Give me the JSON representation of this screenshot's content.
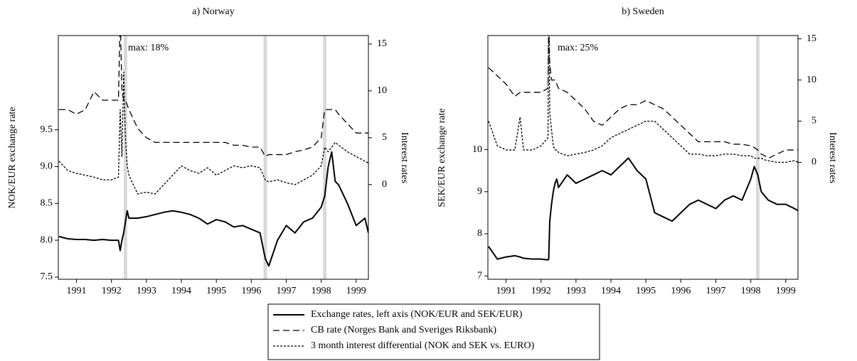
{
  "chart_data": [
    {
      "type": "line",
      "title": "a) Norway",
      "ylabel": "NOK/EUR exchange rate",
      "y2label": "Interest rates",
      "annotation": "max: 18%",
      "x": [
        1991.0,
        1991.25,
        1991.5,
        1991.75,
        1992.0,
        1992.25,
        1992.5,
        1992.7,
        1992.75,
        1992.8,
        1992.85,
        1992.9,
        1992.95,
        1993.0,
        1993.25,
        1993.5,
        1993.75,
        1994.0,
        1994.25,
        1994.5,
        1994.75,
        1995.0,
        1995.25,
        1995.5,
        1995.75,
        1996.0,
        1996.25,
        1996.5,
        1996.75,
        1996.9,
        1997.0,
        1997.25,
        1997.5,
        1997.75,
        1998.0,
        1998.25,
        1998.5,
        1998.6,
        1998.7,
        1998.8,
        1998.9,
        1999.0,
        1999.25,
        1999.5,
        1999.75,
        1999.85
      ],
      "series": [
        {
          "name": "Exchange rates, left axis (NOK/EUR and SEK/EUR)",
          "color": "#000000",
          "dash": "none",
          "width": 2,
          "values": [
            8.05,
            8.02,
            8.01,
            8.01,
            8.0,
            8.01,
            8.0,
            8.0,
            7.86,
            8.0,
            8.1,
            8.25,
            8.4,
            8.3,
            8.3,
            8.32,
            8.35,
            8.38,
            8.4,
            8.38,
            8.35,
            8.3,
            8.22,
            8.28,
            8.25,
            8.18,
            8.2,
            8.15,
            8.1,
            7.75,
            7.65,
            8.0,
            8.2,
            8.1,
            8.25,
            8.3,
            8.45,
            8.6,
            9.0,
            9.2,
            8.8,
            8.75,
            8.5,
            8.2,
            8.3,
            8.1
          ]
        },
        {
          "name": "CB rate (Norges Bank and Sveriges Riksbank)",
          "color": "#000000",
          "dash": "9,5",
          "width": 1.3,
          "axis": "y2",
          "values": [
            8,
            8,
            7.5,
            8,
            9.9,
            9,
            9,
            9,
            18,
            10,
            9,
            9,
            8.5,
            8,
            6,
            5,
            4.5,
            4.5,
            4.5,
            4.5,
            4.5,
            4.5,
            4.5,
            4.5,
            4.5,
            4.2,
            4.2,
            4,
            4,
            3,
            3.2,
            3.2,
            3.2,
            3.5,
            3.7,
            4,
            5,
            8,
            8,
            8,
            8,
            7.5,
            6.5,
            5.5,
            5.5,
            5.5
          ]
        },
        {
          "name": "3 month interest differential (NOK and SEK vs. EURO)",
          "color": "#000000",
          "dash": "3,2",
          "width": 1.3,
          "axis": "y2",
          "values": [
            2.5,
            1.5,
            1.2,
            1.0,
            0.8,
            0.5,
            0.5,
            0.8,
            8,
            3,
            12,
            5,
            2,
            1.0,
            -1,
            -0.8,
            -1,
            0,
            1,
            2,
            1.5,
            1.2,
            1.8,
            1.0,
            1.5,
            2,
            1.8,
            2,
            1.8,
            0.5,
            0.3,
            0.5,
            0.2,
            0,
            0.5,
            1,
            2,
            4,
            3.5,
            4,
            4.5,
            4.2,
            3.5,
            3,
            2.5,
            2.3
          ]
        }
      ],
      "shaded": [
        [
          1992.85,
          1992.95
        ],
        [
          1996.85,
          1996.95
        ],
        [
          1998.55,
          1998.65
        ]
      ],
      "xlim": [
        1990.98,
        1999.85
      ],
      "xticks": [
        {
          "value": 1991.5,
          "label": "1991"
        },
        {
          "value": 1992.5,
          "label": "1992"
        },
        {
          "value": 1993.5,
          "label": "1993"
        },
        {
          "value": 1994.5,
          "label": "1994"
        },
        {
          "value": 1995.5,
          "label": "1995"
        },
        {
          "value": 1996.5,
          "label": "1996"
        },
        {
          "value": 1997.5,
          "label": "1997"
        },
        {
          "value": 1998.5,
          "label": "1998"
        },
        {
          "value": 1999.5,
          "label": "1999"
        }
      ],
      "ylim": [
        7.47,
        10.78
      ],
      "yticks": [
        7.5,
        {
          "value": 8,
          "label": "8.0"
        },
        8.5,
        {
          "value": 9,
          "label": "9.0"
        },
        9.5
      ],
      "y2lim": [
        -10.1,
        15.9
      ],
      "y2ticks": [
        0,
        5,
        10,
        15
      ]
    },
    {
      "type": "line",
      "title": "b) Sweden",
      "ylabel": "SEK/EUR exchange rate",
      "y2label": "Interest rates",
      "annotation": "max: 25%",
      "x": [
        1991.0,
        1991.25,
        1991.5,
        1991.75,
        1991.9,
        1992.0,
        1992.25,
        1992.5,
        1992.7,
        1992.72,
        1992.75,
        1992.8,
        1992.85,
        1992.9,
        1992.95,
        1993.0,
        1993.25,
        1993.5,
        1993.75,
        1994.0,
        1994.25,
        1994.5,
        1994.75,
        1995.0,
        1995.25,
        1995.5,
        1995.75,
        1996.0,
        1996.25,
        1996.5,
        1996.75,
        1997.0,
        1997.25,
        1997.5,
        1997.75,
        1998.0,
        1998.25,
        1998.5,
        1998.6,
        1998.7,
        1998.8,
        1998.9,
        1999.0,
        1999.25,
        1999.5,
        1999.75,
        1999.85
      ],
      "series": [
        {
          "color": "#000000",
          "dash": "none",
          "width": 2,
          "values": [
            7.7,
            7.4,
            7.45,
            7.48,
            7.45,
            7.42,
            7.4,
            7.4,
            7.38,
            7.4,
            8.3,
            8.7,
            9.0,
            9.2,
            9.3,
            9.1,
            9.4,
            9.2,
            9.3,
            9.4,
            9.5,
            9.4,
            9.6,
            9.8,
            9.5,
            9.3,
            8.5,
            8.4,
            8.3,
            8.5,
            8.7,
            8.8,
            8.7,
            8.6,
            8.8,
            8.9,
            8.8,
            9.3,
            9.6,
            9.4,
            9.0,
            8.9,
            8.8,
            8.7,
            8.7,
            8.6,
            8.55
          ]
        },
        {
          "color": "#000000",
          "dash": "9,5",
          "width": 1.3,
          "axis": "y2",
          "values": [
            11.5,
            10.5,
            9.5,
            8,
            8.5,
            8.5,
            8.5,
            8.5,
            9,
            16,
            12,
            10,
            10,
            10,
            9.5,
            9,
            8.5,
            7.5,
            6.5,
            5,
            4.5,
            5.5,
            6.5,
            7,
            7,
            7.5,
            7,
            6.5,
            5.5,
            4.5,
            3.5,
            2.5,
            2.5,
            2.5,
            2.5,
            2.2,
            2.2,
            2.0,
            1.8,
            1.5,
            1.0,
            0.8,
            0.5,
            1,
            1.5,
            1.5,
            1.5
          ]
        },
        {
          "color": "#000000",
          "dash": "3,2",
          "width": 1.3,
          "axis": "y2",
          "values": [
            5,
            2,
            1.5,
            1.5,
            5.5,
            1.5,
            1.5,
            2,
            3,
            25,
            6,
            4,
            2,
            1.5,
            1.5,
            1.2,
            0.8,
            1.0,
            1.2,
            1.5,
            2,
            3,
            3.5,
            4,
            4.5,
            5,
            5,
            4,
            3,
            2,
            1,
            1,
            0.8,
            0.8,
            1,
            1,
            0.8,
            0.8,
            0.5,
            0.5,
            0.5,
            0.3,
            0.2,
            0,
            0,
            0.2,
            0
          ]
        }
      ],
      "shaded": [
        [
          1998.65,
          1998.75
        ]
      ],
      "xlim": [
        1990.98,
        1999.85
      ],
      "xticks": [
        {
          "value": 1991.5,
          "label": "1991"
        },
        {
          "value": 1992.5,
          "label": "1992"
        },
        {
          "value": 1993.5,
          "label": "1993"
        },
        {
          "value": 1994.5,
          "label": "1994"
        },
        {
          "value": 1995.5,
          "label": "1995"
        },
        {
          "value": 1996.5,
          "label": "1996"
        },
        {
          "value": 1997.5,
          "label": "1997"
        },
        {
          "value": 1998.5,
          "label": "1998"
        },
        {
          "value": 1999.5,
          "label": "1999"
        }
      ],
      "ylim": [
        6.92,
        12.71
      ],
      "yticks": [
        7,
        8,
        9,
        10
      ],
      "y2lim": [
        -14.2,
        15.4
      ],
      "y2ticks": [
        0,
        5,
        10,
        15
      ]
    }
  ]
}
